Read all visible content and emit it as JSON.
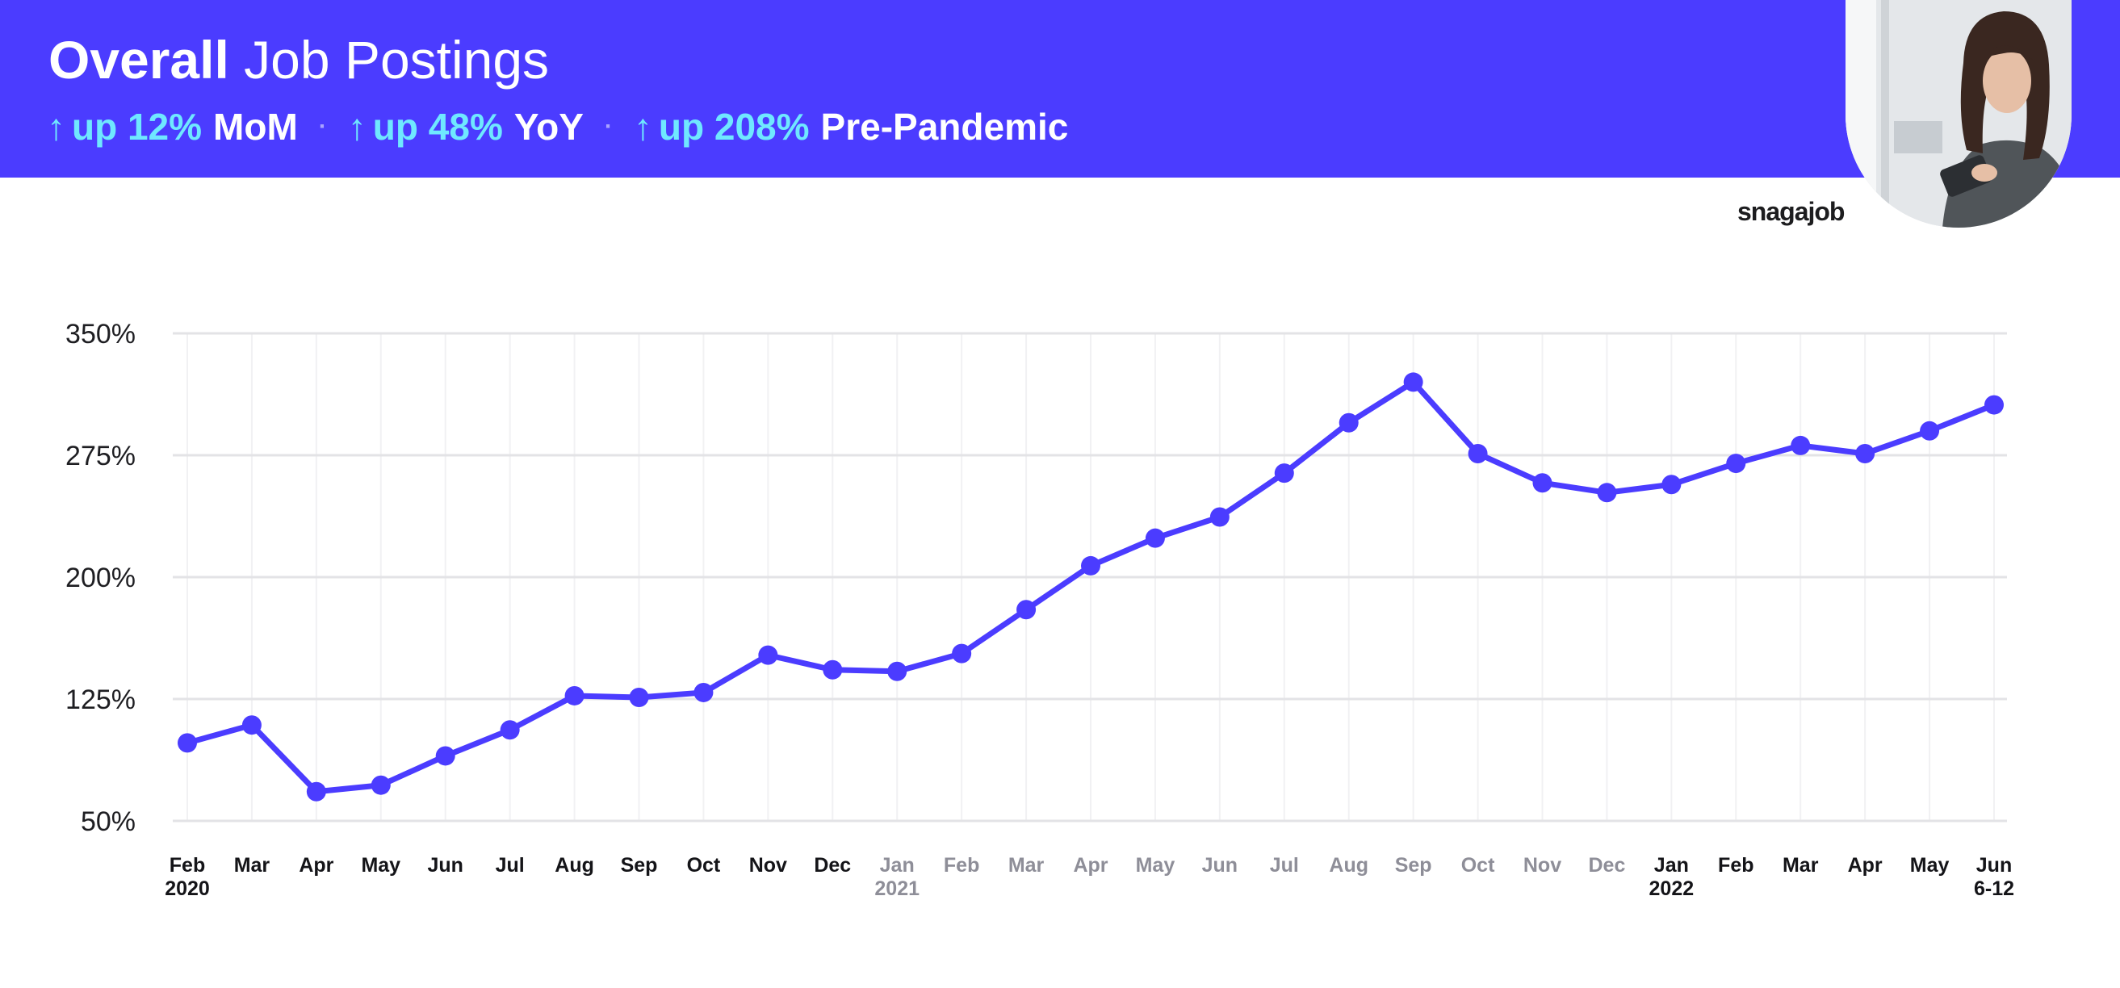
{
  "header": {
    "title_bold": "Overall",
    "title_light": "Job Postings",
    "stats": [
      {
        "arrow": "↑",
        "value": "up 12%",
        "label": "MoM"
      },
      {
        "arrow": "↑",
        "value": "up 48%",
        "label": "YoY"
      },
      {
        "arrow": "↑",
        "value": "up 208%",
        "label": "Pre-Pandemic"
      }
    ],
    "separator": "·",
    "logo": "snagajob"
  },
  "colors": {
    "banner": "#4b3cff",
    "accent_cyan": "#6fe8ff",
    "line": "#4b3cff",
    "grid": "#e3e3e6"
  },
  "chart_data": {
    "type": "line",
    "ylim": [
      50,
      350
    ],
    "yticks": [
      50,
      125,
      200,
      275,
      350
    ],
    "ytick_labels": [
      "50%",
      "125%",
      "200%",
      "275%",
      "350%"
    ],
    "grid": true,
    "categories": [
      {
        "month": "Feb",
        "year": "2020",
        "dim": false
      },
      {
        "month": "Mar",
        "year": "",
        "dim": false
      },
      {
        "month": "Apr",
        "year": "",
        "dim": false
      },
      {
        "month": "May",
        "year": "",
        "dim": false
      },
      {
        "month": "Jun",
        "year": "",
        "dim": false
      },
      {
        "month": "Jul",
        "year": "",
        "dim": false
      },
      {
        "month": "Aug",
        "year": "",
        "dim": false
      },
      {
        "month": "Sep",
        "year": "",
        "dim": false
      },
      {
        "month": "Oct",
        "year": "",
        "dim": false
      },
      {
        "month": "Nov",
        "year": "",
        "dim": false
      },
      {
        "month": "Dec",
        "year": "",
        "dim": false
      },
      {
        "month": "Jan",
        "year": "2021",
        "dim": true
      },
      {
        "month": "Feb",
        "year": "",
        "dim": true
      },
      {
        "month": "Mar",
        "year": "",
        "dim": true
      },
      {
        "month": "Apr",
        "year": "",
        "dim": true
      },
      {
        "month": "May",
        "year": "",
        "dim": true
      },
      {
        "month": "Jun",
        "year": "",
        "dim": true
      },
      {
        "month": "Jul",
        "year": "",
        "dim": true
      },
      {
        "month": "Aug",
        "year": "",
        "dim": true
      },
      {
        "month": "Sep",
        "year": "",
        "dim": true
      },
      {
        "month": "Oct",
        "year": "",
        "dim": true
      },
      {
        "month": "Nov",
        "year": "",
        "dim": true
      },
      {
        "month": "Dec",
        "year": "",
        "dim": true
      },
      {
        "month": "Jan",
        "year": "2022",
        "dim": false
      },
      {
        "month": "Feb",
        "year": "",
        "dim": false
      },
      {
        "month": "Mar",
        "year": "",
        "dim": false
      },
      {
        "month": "Apr",
        "year": "",
        "dim": false
      },
      {
        "month": "May",
        "year": "",
        "dim": false
      },
      {
        "month": "Jun",
        "year": "6-12",
        "dim": false
      }
    ],
    "values": [
      98,
      109,
      68,
      72,
      90,
      106,
      127,
      126,
      129,
      152,
      143,
      142,
      153,
      180,
      207,
      224,
      237,
      264,
      295,
      320,
      276,
      258,
      252,
      257,
      270,
      281,
      276,
      290,
      306
    ]
  }
}
